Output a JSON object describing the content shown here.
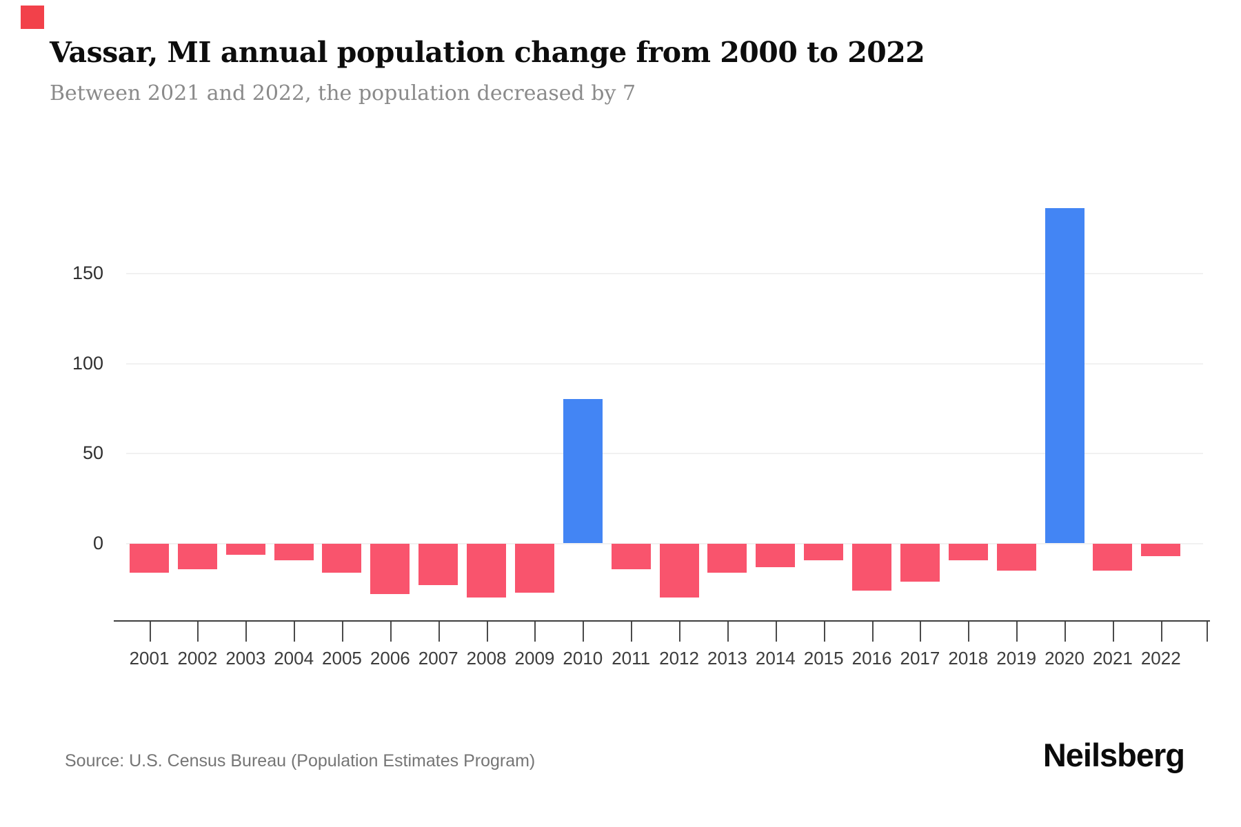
{
  "brand": {
    "logo_text": "Neilsberg",
    "mark_color": "#f2414a"
  },
  "chart_data": {
    "type": "bar",
    "title": "Vassar, MI annual population change from 2000 to 2022",
    "subtitle": "Between 2021 and 2022, the population decreased by 7",
    "categories": [
      "2001",
      "2002",
      "2003",
      "2004",
      "2005",
      "2006",
      "2007",
      "2008",
      "2009",
      "2010",
      "2011",
      "2012",
      "2013",
      "2014",
      "2015",
      "2016",
      "2017",
      "2018",
      "2019",
      "2020",
      "2021",
      "2022"
    ],
    "values": [
      -16,
      -14,
      -6,
      -9,
      -16,
      -28,
      -23,
      -30,
      -27,
      80,
      -14,
      -30,
      -16,
      -13,
      -9,
      -26,
      -21,
      -9,
      -15,
      186,
      -15,
      -7
    ],
    "positive_color": "#4385f4",
    "negative_color": "#f9546d",
    "y_ticks": [
      0,
      50,
      100,
      150
    ],
    "ylim": [
      -35,
      190
    ],
    "grid": "horizontal",
    "legend": "none",
    "xlabel": "",
    "ylabel": "",
    "source": "Source: U.S. Census Bureau (Population Estimates Program)"
  }
}
